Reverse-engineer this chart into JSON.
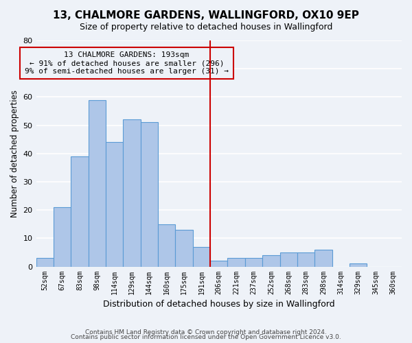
{
  "title": "13, CHALMORE GARDENS, WALLINGFORD, OX10 9EP",
  "subtitle": "Size of property relative to detached houses in Wallingford",
  "xlabel": "Distribution of detached houses by size in Wallingford",
  "ylabel": "Number of detached properties",
  "bin_labels": [
    "52sqm",
    "67sqm",
    "83sqm",
    "98sqm",
    "114sqm",
    "129sqm",
    "144sqm",
    "160sqm",
    "175sqm",
    "191sqm",
    "206sqm",
    "221sqm",
    "237sqm",
    "252sqm",
    "268sqm",
    "283sqm",
    "298sqm",
    "314sqm",
    "329sqm",
    "345sqm",
    "360sqm"
  ],
  "bar_values": [
    3,
    21,
    39,
    59,
    44,
    52,
    51,
    15,
    13,
    7,
    2,
    3,
    3,
    4,
    5,
    5,
    6,
    0,
    1,
    0,
    0
  ],
  "bar_color": "#aec6e8",
  "bar_edge_color": "#5b9bd5",
  "vline_color": "#cc0000",
  "annotation_text": "13 CHALMORE GARDENS: 193sqm\n← 91% of detached houses are smaller (296)\n9% of semi-detached houses are larger (31) →",
  "annotation_box_edge": "#cc0000",
  "ylim": [
    0,
    80
  ],
  "yticks": [
    0,
    10,
    20,
    30,
    40,
    50,
    60,
    70,
    80
  ],
  "footer_line1": "Contains HM Land Registry data © Crown copyright and database right 2024.",
  "footer_line2": "Contains public sector information licensed under the Open Government Licence v3.0.",
  "background_color": "#eef2f8",
  "grid_color": "#ffffff"
}
